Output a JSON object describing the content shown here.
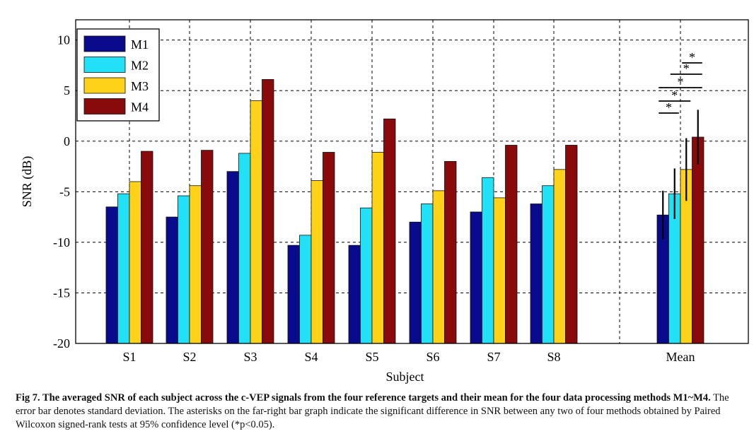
{
  "chart_data": {
    "type": "bar",
    "ylabel": "SNR (dB)",
    "xlabel": "Subject",
    "ylim": [
      -20,
      12
    ],
    "yticks": [
      10,
      5,
      0,
      -5,
      -10,
      -15,
      -20
    ],
    "grid": true,
    "legend_position": "top-left",
    "categories": [
      "S1",
      "S2",
      "S3",
      "S4",
      "S5",
      "S6",
      "S7",
      "S8",
      "Mean"
    ],
    "series": [
      {
        "name": "M1",
        "color": "#0a0a8c",
        "values": [
          -6.5,
          -7.5,
          -3.0,
          -10.3,
          -10.3,
          -8.0,
          -7.0,
          -6.2,
          -7.3
        ]
      },
      {
        "name": "M2",
        "color": "#22e0f5",
        "values": [
          -5.2,
          -5.4,
          -1.2,
          -9.3,
          -6.6,
          -6.2,
          -3.6,
          -4.4,
          -5.2
        ]
      },
      {
        "name": "M3",
        "color": "#ffd21a",
        "values": [
          -4.0,
          -4.4,
          4.0,
          -3.9,
          -1.1,
          -4.9,
          -5.6,
          -2.8,
          -2.8
        ]
      },
      {
        "name": "M4",
        "color": "#880a0a",
        "values": [
          -1.0,
          -0.9,
          6.1,
          -1.1,
          2.2,
          -2.0,
          -0.4,
          -0.4,
          0.4
        ]
      }
    ],
    "error_bars": {
      "category": "Mean",
      "values": [
        2.4,
        2.5,
        3.1,
        2.7
      ]
    },
    "significance": {
      "category": "Mean",
      "label": "*",
      "pairs": [
        [
          0,
          1
        ],
        [
          0,
          2
        ],
        [
          0,
          3
        ],
        [
          1,
          3
        ],
        [
          2,
          3
        ]
      ]
    }
  },
  "caption": {
    "bold": "Fig 7. The averaged SNR of each subject across the c-VEP signals from the four reference targets and their mean for the four data processing methods M1~M4.",
    "text": " The error bar denotes standard deviation. The asterisks on the far-right bar graph indicate the significant difference in SNR between any two of four methods obtained by Paired Wilcoxon signed-rank tests at 95% confidence level (*p<0.05)."
  }
}
